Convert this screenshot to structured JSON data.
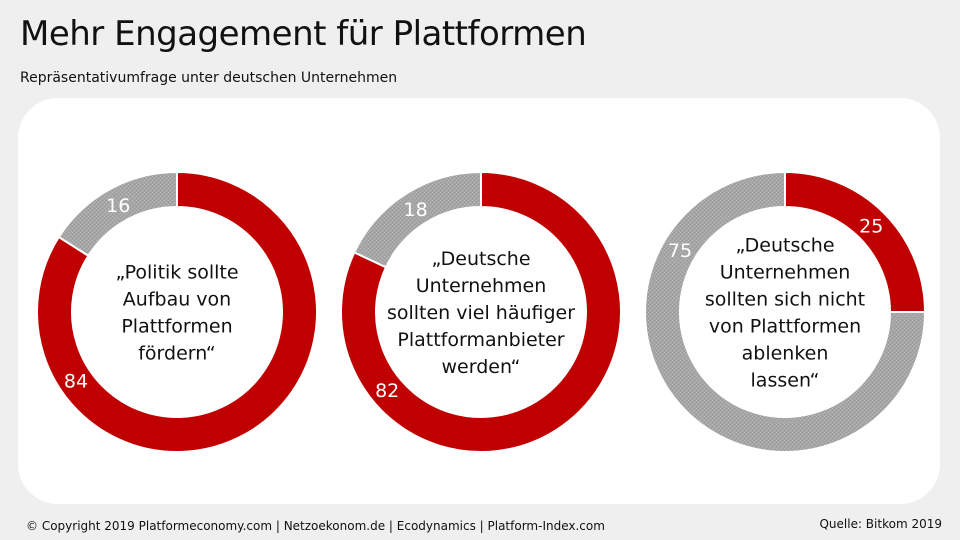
{
  "header": {
    "title": "Mehr Engagement für Plattformen",
    "subtitle": "Repräsentativumfrage unter deutschen Unternehmen"
  },
  "footer": {
    "copyright": "© Copyright 2019 Platformeconomy.com | Netzoekonom.de | Ecodynamics | Platform-Index.com",
    "source": "Quelle: Bitkom 2019"
  },
  "colors": {
    "agree": "#c00000",
    "disagree": "#a6a6a6"
  },
  "chart_data": [
    {
      "type": "pie",
      "center_label": [
        "„Politik sollte",
        "Aufbau von",
        "Plattformen",
        "fördern“"
      ],
      "slices": [
        {
          "value": 84,
          "color": "#c00000"
        },
        {
          "value": 16,
          "color": "#a6a6a6"
        }
      ]
    },
    {
      "type": "pie",
      "center_label": [
        "„Deutsche",
        "Unternehmen",
        "sollten viel häufiger",
        "Plattformanbieter",
        "werden“"
      ],
      "slices": [
        {
          "value": 82,
          "color": "#c00000"
        },
        {
          "value": 18,
          "color": "#a6a6a6"
        }
      ]
    },
    {
      "type": "pie",
      "center_label": [
        "„Deutsche",
        "Unternehmen",
        "sollten sich nicht",
        "von Plattformen",
        "ablenken",
        "lassen“"
      ],
      "slices": [
        {
          "value": 25,
          "color": "#c00000"
        },
        {
          "value": 75,
          "color": "#a6a6a6"
        }
      ]
    }
  ]
}
